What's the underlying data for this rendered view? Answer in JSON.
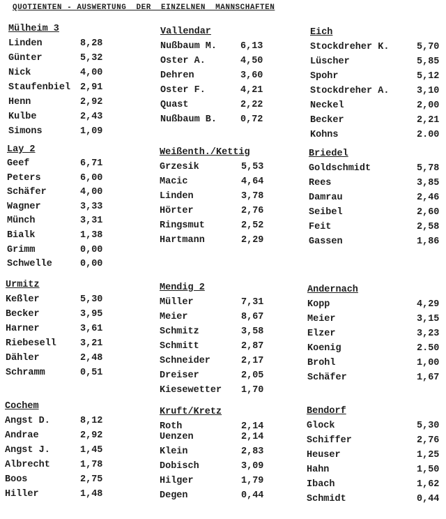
{
  "title": "QUOTIENTEN - AUSWERTUNG  DER  EINZELNEN  MANNSCHAFTEN",
  "teams": [
    {
      "name": "Mülheim 3",
      "players": [
        [
          "Linden",
          "8,28"
        ],
        [
          "Günter",
          "5,32"
        ],
        [
          "Nick",
          "4,00"
        ],
        [
          "Staufenbiel",
          "2,91"
        ],
        [
          "Henn",
          "2,92"
        ],
        [
          "Kulbe",
          "2,43"
        ],
        [
          "Simons",
          "1,09"
        ]
      ]
    },
    {
      "name": "Vallendar",
      "players": [
        [
          "Nußbaum M.",
          "6,13"
        ],
        [
          "Oster A.",
          "4,50"
        ],
        [
          "Dehren",
          "3,60"
        ],
        [
          "Oster F.",
          "4,21"
        ],
        [
          "Quast",
          "2,22"
        ],
        [
          "Nußbaum B.",
          "0,72"
        ]
      ]
    },
    {
      "name": "Eich",
      "players": [
        [
          "Stockdreher K.",
          "5,70"
        ],
        [
          "Lüscher",
          "5,85"
        ],
        [
          "Spohr",
          "5,12"
        ],
        [
          "Stockdreher A.",
          "3,10"
        ],
        [
          "Neckel",
          "2,00"
        ],
        [
          "Becker",
          "2,21"
        ],
        [
          "Kohns",
          "2.00"
        ]
      ]
    },
    {
      "name": "Lay 2",
      "players": [
        [
          "Geef",
          "6,71"
        ],
        [
          "Peters",
          "6,00"
        ],
        [
          "Schäfer",
          "4,00"
        ],
        [
          "Wagner",
          "3,33"
        ],
        [
          "Münch",
          "3,31"
        ],
        [
          "Bialk",
          "1,38"
        ],
        [
          "Grimm",
          "0,00"
        ],
        [
          "Schwelle",
          "0,00"
        ]
      ]
    },
    {
      "name": "Weißenth./Kettig",
      "players": [
        [
          "Grzesik",
          "5,53"
        ],
        [
          "Macic",
          "4,64"
        ],
        [
          "Linden",
          "3,78"
        ],
        [
          "Hörter",
          "2,76"
        ],
        [
          "Ringsmut",
          "2,52"
        ],
        [
          "Hartmann",
          "2,29"
        ]
      ]
    },
    {
      "name": "Briedel",
      "players": [
        [
          "Goldschmidt",
          "5,78"
        ],
        [
          "Rees",
          "3,85"
        ],
        [
          "Damrau",
          "2,46"
        ],
        [
          "Seibel",
          "2,60"
        ],
        [
          "Feit",
          "2,58"
        ],
        [
          "Gassen",
          "1,86"
        ]
      ]
    },
    {
      "name": "Urmitz",
      "players": [
        [
          "Keßler",
          "5,30"
        ],
        [
          "Becker",
          "3,95"
        ],
        [
          "Harner",
          "3,61"
        ],
        [
          "Riebesell",
          "3,21"
        ],
        [
          "Dähler",
          "2,48"
        ],
        [
          "Schramm",
          "0,51"
        ]
      ]
    },
    {
      "name": "Mendig 2",
      "players": [
        [
          "Müller",
          "7,31"
        ],
        [
          "Meier",
          "8,67"
        ],
        [
          "Schmitz",
          "3,58"
        ],
        [
          "Schmitt",
          "2,87"
        ],
        [
          "Schneider",
          "2,17"
        ],
        [
          "Dreiser",
          "2,05"
        ],
        [
          "Kiesewetter",
          "1,70"
        ]
      ]
    },
    {
      "name": "Andernach",
      "players": [
        [
          "Kopp",
          "4,29"
        ],
        [
          "Meier",
          "3,15"
        ],
        [
          "Elzer",
          "3,23"
        ],
        [
          "Koenig",
          "2.50"
        ],
        [
          "Brohl",
          "1,00"
        ],
        [
          "Schäfer",
          "1,67"
        ]
      ]
    },
    {
      "name": "Cochem",
      "players": [
        [
          "Angst D.",
          "8,12"
        ],
        [
          "Andrae",
          "2,92"
        ],
        [
          "Angst J.",
          "1,45"
        ],
        [
          "Albrecht",
          "1,78"
        ],
        [
          "Boos",
          "2,75"
        ],
        [
          "Hiller",
          "1,48"
        ]
      ]
    },
    {
      "name": "Kruft/Kretz",
      "players": [
        [
          "Roth",
          "2,14"
        ],
        [
          "Uenzen",
          "2,14"
        ],
        [
          "Klein",
          "2,83"
        ],
        [
          "Dobisch",
          "3,09"
        ],
        [
          "Hilger",
          "1,79"
        ],
        [
          "Degen",
          "0,44"
        ]
      ]
    },
    {
      "name": "Bendorf",
      "players": [
        [
          "Glock",
          "5,30"
        ],
        [
          "Schiffer",
          "2,76"
        ],
        [
          "Heuser",
          "1,25"
        ],
        [
          "Hahn",
          "1,50"
        ],
        [
          "Ibach",
          "1,62"
        ],
        [
          "Schmidt",
          "0,44"
        ]
      ]
    }
  ]
}
